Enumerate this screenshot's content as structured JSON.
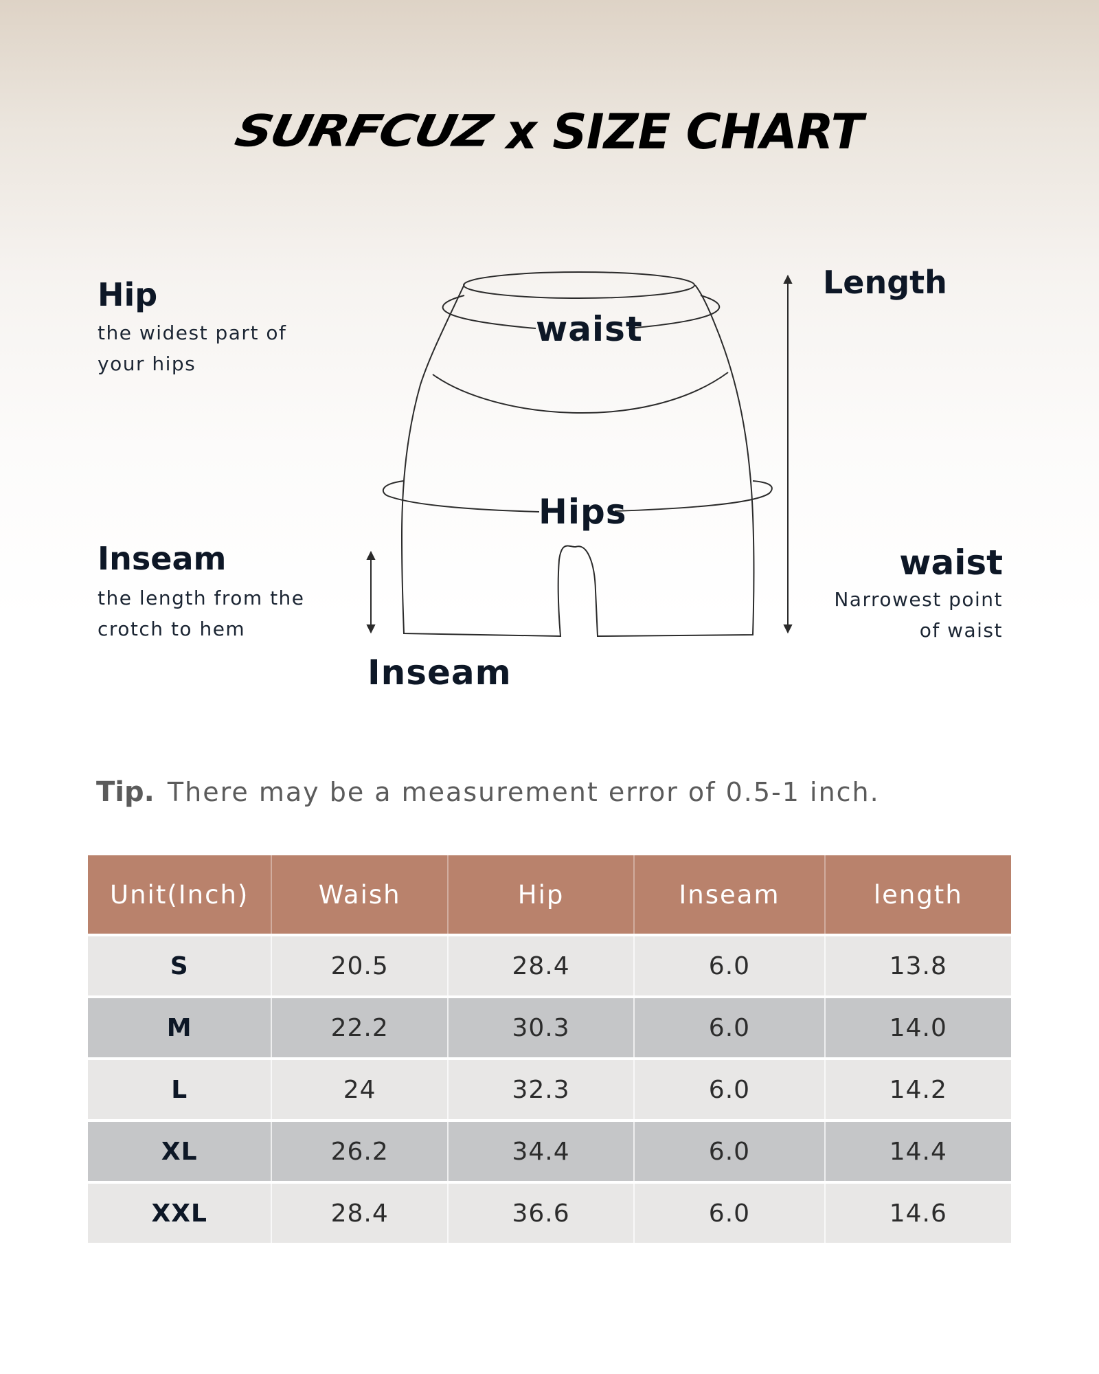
{
  "title": {
    "brand": "SURFCUZ",
    "rest": "x SIZE CHART"
  },
  "side_labels": {
    "hip": {
      "heading": "Hip",
      "desc1": "the widest part of",
      "desc2": "your hips"
    },
    "inseam": {
      "heading": "Inseam",
      "desc1": "the length from the",
      "desc2": "crotch to hem"
    },
    "waist": {
      "heading": "waist",
      "desc1": "Narrowest point",
      "desc2": "of waist"
    },
    "length": {
      "heading": "Length"
    }
  },
  "diagram_labels": {
    "waist": "waist",
    "hips": "Hips",
    "inseam": "Inseam"
  },
  "tip": {
    "label": "Tip.",
    "text": "There may be a measurement error of 0.5-1 inch."
  },
  "table": {
    "headers": [
      "Unit(Inch)",
      "Waish",
      "Hip",
      "Inseam",
      "length"
    ],
    "rows": [
      {
        "size": "S",
        "waist": "20.5",
        "hip": "28.4",
        "inseam": "6.0",
        "length": "13.8"
      },
      {
        "size": "M",
        "waist": "22.2",
        "hip": "30.3",
        "inseam": "6.0",
        "length": "14.0"
      },
      {
        "size": "L",
        "waist": "24",
        "hip": "32.3",
        "inseam": "6.0",
        "length": "14.2"
      },
      {
        "size": "XL",
        "waist": "26.2",
        "hip": "34.4",
        "inseam": "6.0",
        "length": "14.4"
      },
      {
        "size": "XXL",
        "waist": "28.4",
        "hip": "36.6",
        "inseam": "6.0",
        "length": "14.6"
      }
    ]
  },
  "colors": {
    "header_bg": "#b9826c",
    "row_light": "#e8e7e6",
    "row_dark": "#c5c6c8",
    "text_dark": "#0d1726"
  }
}
